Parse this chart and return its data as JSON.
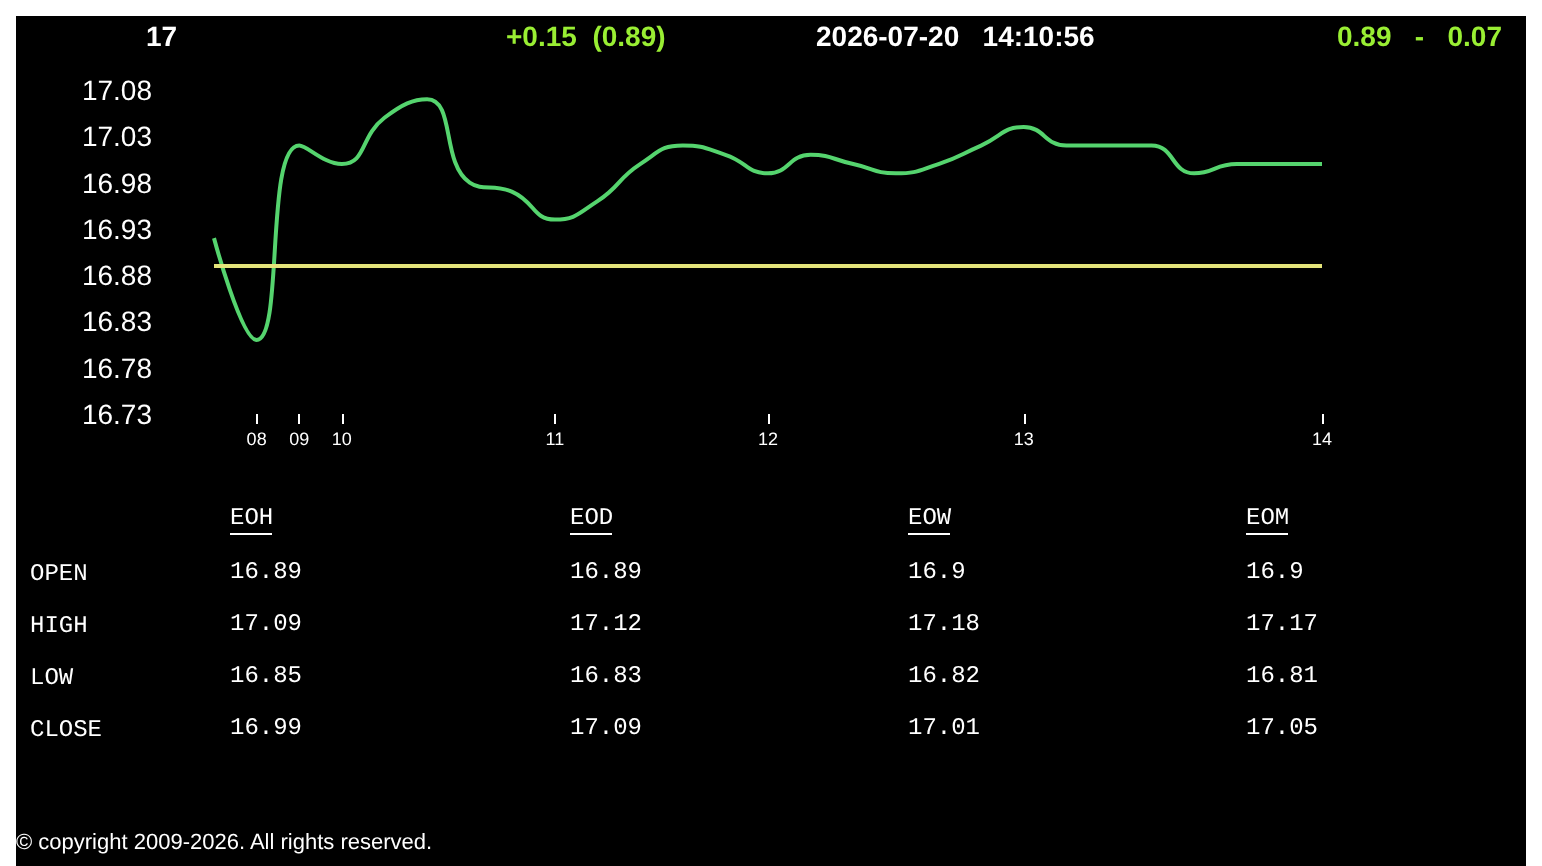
{
  "chart_data": {
    "type": "line",
    "categories": [
      null,
      "08",
      "09",
      "10",
      null,
      null,
      null,
      null,
      "11",
      null,
      null,
      null,
      null,
      "12",
      null,
      null,
      null,
      null,
      null,
      "13",
      null,
      null,
      null,
      null,
      null,
      null,
      "14"
    ],
    "series": [
      {
        "color": "#55d46e",
        "values": [
          16.92,
          16.81,
          17.02,
          17.0,
          17.05,
          17.07,
          16.98,
          16.97,
          16.94,
          16.96,
          17.0,
          17.02,
          17.01,
          16.99,
          17.01,
          17.0,
          16.99,
          17.0,
          17.02,
          17.04,
          17.02,
          17.02,
          17.02,
          16.99,
          17.0,
          17.0,
          17.0
        ]
      }
    ],
    "ylim": [
      16.73,
      17.08
    ],
    "yticks": [
      16.73,
      16.78,
      16.83,
      16.88,
      16.93,
      16.98,
      17.03,
      17.08
    ],
    "grid": false,
    "marker": "none",
    "line_style": "solid",
    "ref_lines": [
      {
        "axis": "y",
        "value": 16.89,
        "color": "#e4e47a"
      }
    ],
    "annotations": [
      "17",
      "+0.15  (0.89)",
      "2026-07-20   14:10:56",
      "0.89   -   0.07",
      "EOH",
      "EOD",
      "EOW",
      "EOM",
      "OPEN",
      "16.89",
      "16.89",
      "16.9",
      "16.9",
      "HIGH",
      "17.09",
      "17.12",
      "17.18",
      "17.17",
      "LOW",
      "16.85",
      "16.83",
      "16.82",
      "16.81",
      "CLOSE",
      "16.99",
      "17.09",
      "17.01",
      "17.05",
      "© copyright 2009-2026. All rights reserved."
    ]
  }
}
